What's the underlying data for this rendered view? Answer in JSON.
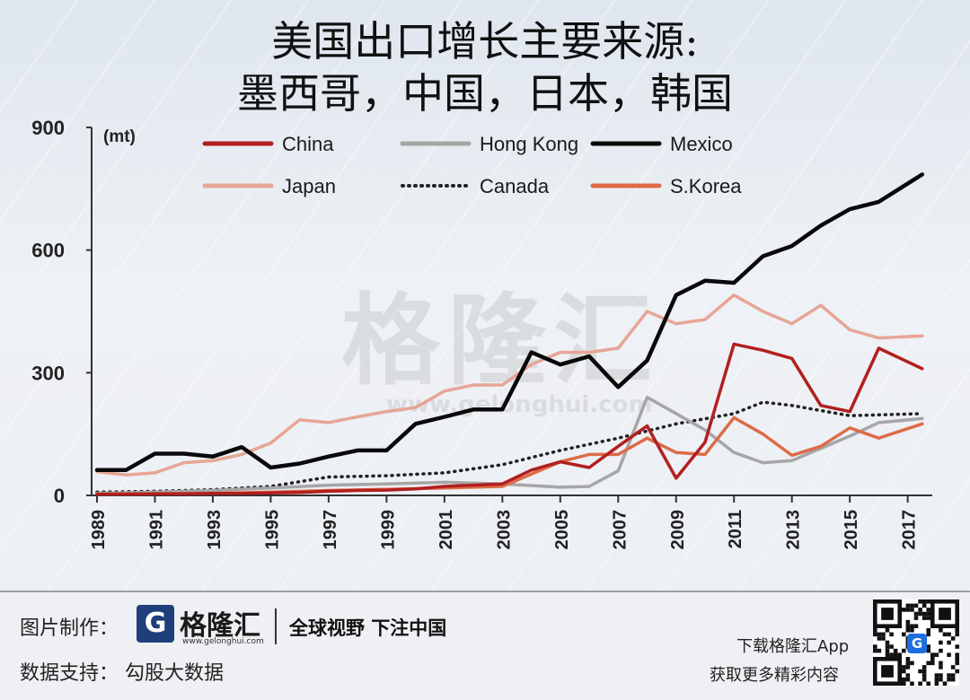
{
  "title": [
    "美国出口增长主要来源:",
    "墨西哥，中国，日本，韩国"
  ],
  "watermark": {
    "text": "格隆汇",
    "url": "www.gelonghui.com"
  },
  "colors": {
    "China": "#b21f1f",
    "Hong Kong": "#a6a6a6",
    "Mexico": "#0a0a0a",
    "Japan": "#e7a596",
    "Canada": "#222222",
    "S.Korea": "#dd6b48"
  },
  "chart_data": {
    "type": "line",
    "unit_label": "(mt)",
    "ylim": [
      0,
      900
    ],
    "yticks": [
      0,
      300,
      600,
      900
    ],
    "xlim": [
      1989,
      2017.6
    ],
    "xticks": [
      "1989",
      "1991",
      "1993",
      "1995",
      "1997",
      "1999",
      "2001",
      "2003",
      "2005",
      "2007",
      "2009",
      "2011",
      "2013",
      "2015",
      "2017"
    ],
    "legend_position": "top",
    "series": [
      {
        "name": "China",
        "style": "solid",
        "x": [
          1989,
          1990,
          1991,
          1992,
          1993,
          1994,
          1995,
          1996,
          1997,
          1998,
          1999,
          2000,
          2001,
          2002,
          2003,
          2004,
          2005,
          2006,
          2007,
          2008,
          2009,
          2010,
          2011,
          2012,
          2013,
          2014,
          2015,
          2016,
          2017.5
        ],
        "y": [
          3,
          3,
          4,
          4,
          5,
          5,
          6,
          7,
          10,
          12,
          13,
          16,
          22,
          25,
          28,
          62,
          82,
          68,
          120,
          170,
          42,
          130,
          370,
          355,
          335,
          220,
          205,
          360,
          310
        ]
      },
      {
        "name": "Hong Kong",
        "style": "solid",
        "x": [
          1989,
          1991,
          1993,
          1995,
          1997,
          1999,
          2001,
          2003,
          2005,
          2006,
          2007,
          2008,
          2009,
          2010,
          2011,
          2012,
          2013,
          2014,
          2015,
          2016,
          2017.5
        ],
        "y": [
          5,
          8,
          12,
          18,
          25,
          28,
          32,
          28,
          20,
          22,
          60,
          240,
          200,
          160,
          105,
          80,
          85,
          115,
          145,
          178,
          188
        ]
      },
      {
        "name": "Mexico",
        "style": "solid",
        "x": [
          1989,
          1990,
          1991,
          1992,
          1993,
          1994,
          1995,
          1996,
          1997,
          1998,
          1999,
          2000,
          2001,
          2002,
          2003,
          2004,
          2005,
          2006,
          2007,
          2008,
          2009,
          2010,
          2011,
          2012,
          2013,
          2014,
          2015,
          2016,
          2017.5
        ],
        "y": [
          62,
          62,
          102,
          102,
          95,
          118,
          68,
          78,
          95,
          110,
          110,
          175,
          192,
          210,
          210,
          350,
          320,
          340,
          265,
          330,
          490,
          525,
          520,
          585,
          610,
          660,
          700,
          718,
          785
        ]
      },
      {
        "name": "Japan",
        "style": "solid",
        "x": [
          1989,
          1990,
          1991,
          1992,
          1993,
          1994,
          1995,
          1996,
          1997,
          1998,
          1999,
          2000,
          2001,
          2002,
          2003,
          2004,
          2005,
          2006,
          2007,
          2008,
          2009,
          2010,
          2011,
          2012,
          2013,
          2014,
          2015,
          2016,
          2017.5
        ],
        "y": [
          58,
          50,
          55,
          80,
          85,
          100,
          128,
          185,
          178,
          192,
          205,
          215,
          255,
          270,
          270,
          320,
          350,
          350,
          360,
          450,
          420,
          430,
          490,
          450,
          420,
          465,
          405,
          385,
          390
        ]
      },
      {
        "name": "Canada",
        "style": "dotted",
        "x": [
          1989,
          1991,
          1993,
          1995,
          1997,
          1999,
          2001,
          2003,
          2005,
          2007,
          2009,
          2011,
          2012,
          2013,
          2015,
          2017.5
        ],
        "y": [
          8,
          10,
          14,
          22,
          45,
          48,
          55,
          75,
          110,
          140,
          175,
          200,
          228,
          220,
          195,
          200
        ]
      },
      {
        "name": "S.Korea",
        "style": "solid",
        "x": [
          1989,
          1991,
          1993,
          1995,
          1997,
          1999,
          2001,
          2003,
          2005,
          2006,
          2007,
          2008,
          2009,
          2010,
          2011,
          2012,
          2013,
          2014,
          2015,
          2016,
          2017.5
        ],
        "y": [
          3,
          4,
          5,
          8,
          12,
          15,
          18,
          22,
          82,
          100,
          100,
          140,
          105,
          100,
          190,
          150,
          98,
          120,
          165,
          140,
          175
        ]
      }
    ]
  },
  "footer": {
    "credit_label": "图片制作：",
    "logo_mark": "G",
    "logo_name": "格隆汇",
    "logo_url": "www.gelonghui.com",
    "slogan": "全球视野 下注中国",
    "support_label": "数据支持： 勾股大数据",
    "download": "下载格隆汇App",
    "more": "获取更多精彩内容",
    "qr_mark": "G"
  }
}
